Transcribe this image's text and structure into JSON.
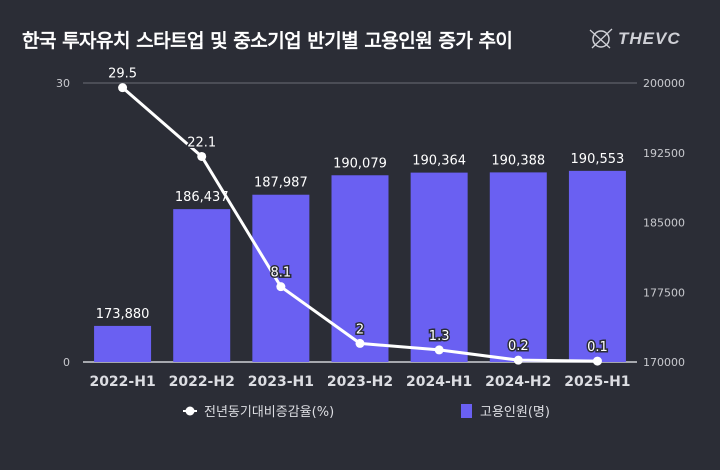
{
  "title": "한국 투자유치 스타트업 및 중소기업 반기별 고용인원 증가 추이",
  "logo": {
    "text": "THEVC",
    "icon": "thevc-logo-icon"
  },
  "colors": {
    "background": "#2b2d36",
    "bar": "#6a60f2",
    "line": "#ffffff",
    "axis_text": "#c8c9ce",
    "gridline": "#6b6d76"
  },
  "chart_data": {
    "type": "bar+line",
    "title": "한국 투자유치 스타트업 및 중소기업 반기별 고용인원 증가 추이",
    "categories": [
      "2022-H1",
      "2022-H2",
      "2023-H1",
      "2023-H2",
      "2024-H1",
      "2024-H2",
      "2025-H1"
    ],
    "series": [
      {
        "name": "전년동기대비증감율(%)",
        "type": "line",
        "axis": "left",
        "values": [
          29.5,
          22.1,
          8.1,
          2,
          1.3,
          0.2,
          0.1
        ],
        "labels": [
          "29.5",
          "22.1",
          "8.1",
          "2",
          "1.3",
          "0.2",
          "0.1"
        ]
      },
      {
        "name": "고용인원(명)",
        "type": "bar",
        "axis": "right",
        "values": [
          173880,
          186437,
          187987,
          190079,
          190364,
          190388,
          190553
        ],
        "labels": [
          "173,880",
          "186,437",
          "187,987",
          "190,079",
          "190,364",
          "190,388",
          "190,553"
        ]
      }
    ],
    "left_axis": {
      "range": [
        0,
        30
      ],
      "ticks": [
        "0",
        "30"
      ]
    },
    "right_axis": {
      "range": [
        170000,
        200000
      ],
      "ticks": [
        "170000",
        "177500",
        "185000",
        "192500",
        "200000"
      ]
    },
    "grid": false,
    "legend": "bottom"
  }
}
